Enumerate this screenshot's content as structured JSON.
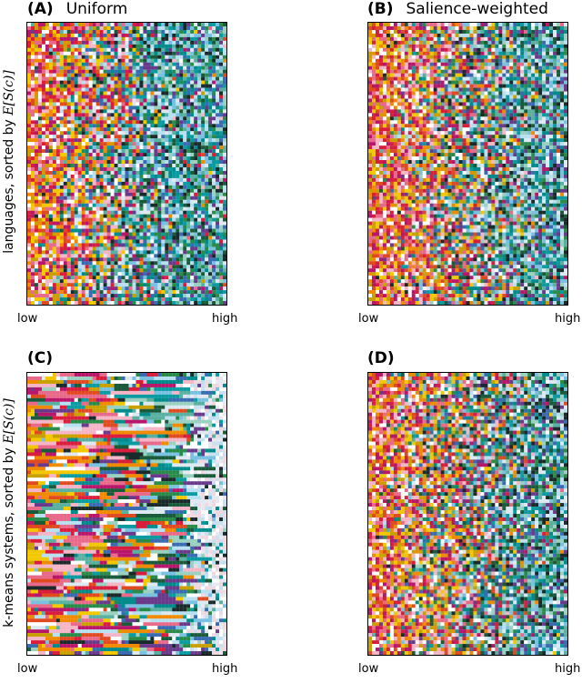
{
  "chart_data": {
    "type": "heatmap",
    "panels": [
      {
        "id": "A",
        "label": "(A)",
        "title": "Uniform",
        "xlabel_low": "low",
        "xlabel_high": "high",
        "ylabel": "languages, sorted by",
        "ylabel_math": "E[S(c)]",
        "style": "uniform"
      },
      {
        "id": "B",
        "label": "(B)",
        "title": "Salience-weighted",
        "xlabel_low": "low",
        "xlabel_high": "high",
        "style": "salience"
      },
      {
        "id": "C",
        "label": "(C)",
        "title": "",
        "xlabel_low": "low",
        "xlabel_high": "high",
        "ylabel": "k-means systems, sorted by",
        "ylabel_math": "E[S(c)]",
        "style": "kmeans"
      },
      {
        "id": "D",
        "label": "(D)",
        "title": "",
        "xlabel_low": "low",
        "xlabel_high": "high",
        "style": "salience"
      }
    ],
    "low_colors": [
      "#f2c800",
      "#f08a00",
      "#d81e3c",
      "#e86a8a",
      "#f4b6c6",
      "#ffffff",
      "#b8166a",
      "#c8a000",
      "#e04a20"
    ],
    "high_colors": [
      "#008a8a",
      "#0a9aa0",
      "#1a5a3a",
      "#2a8a4a",
      "#3a6ab0",
      "#7ac0e0",
      "#b8e0f0",
      "#1a2a2a",
      "#5ab0a0",
      "#6a3a8a",
      "#9ad0c0",
      "#dde8f0"
    ]
  }
}
